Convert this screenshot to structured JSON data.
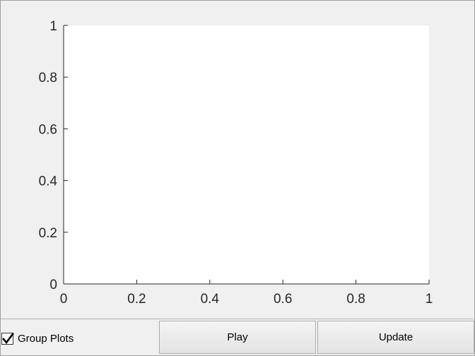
{
  "chart_data": {
    "type": "line",
    "series": [],
    "xlim": [
      0,
      1
    ],
    "ylim": [
      0,
      1
    ],
    "xticks": [
      "0",
      "0.2",
      "0.4",
      "0.6",
      "0.8",
      "1"
    ],
    "yticks": [
      "0",
      "0.2",
      "0.4",
      "0.6",
      "0.8",
      "1"
    ],
    "grid": false,
    "title": "",
    "xlabel": "",
    "ylabel": ""
  },
  "controls": {
    "group_plots_label": "Group Plots",
    "group_plots_checked": true,
    "play_label": "Play",
    "update_label": "Update"
  },
  "colors": {
    "background": "#f0f0f0",
    "axes_background": "#ffffff",
    "axis_color": "#262626"
  }
}
